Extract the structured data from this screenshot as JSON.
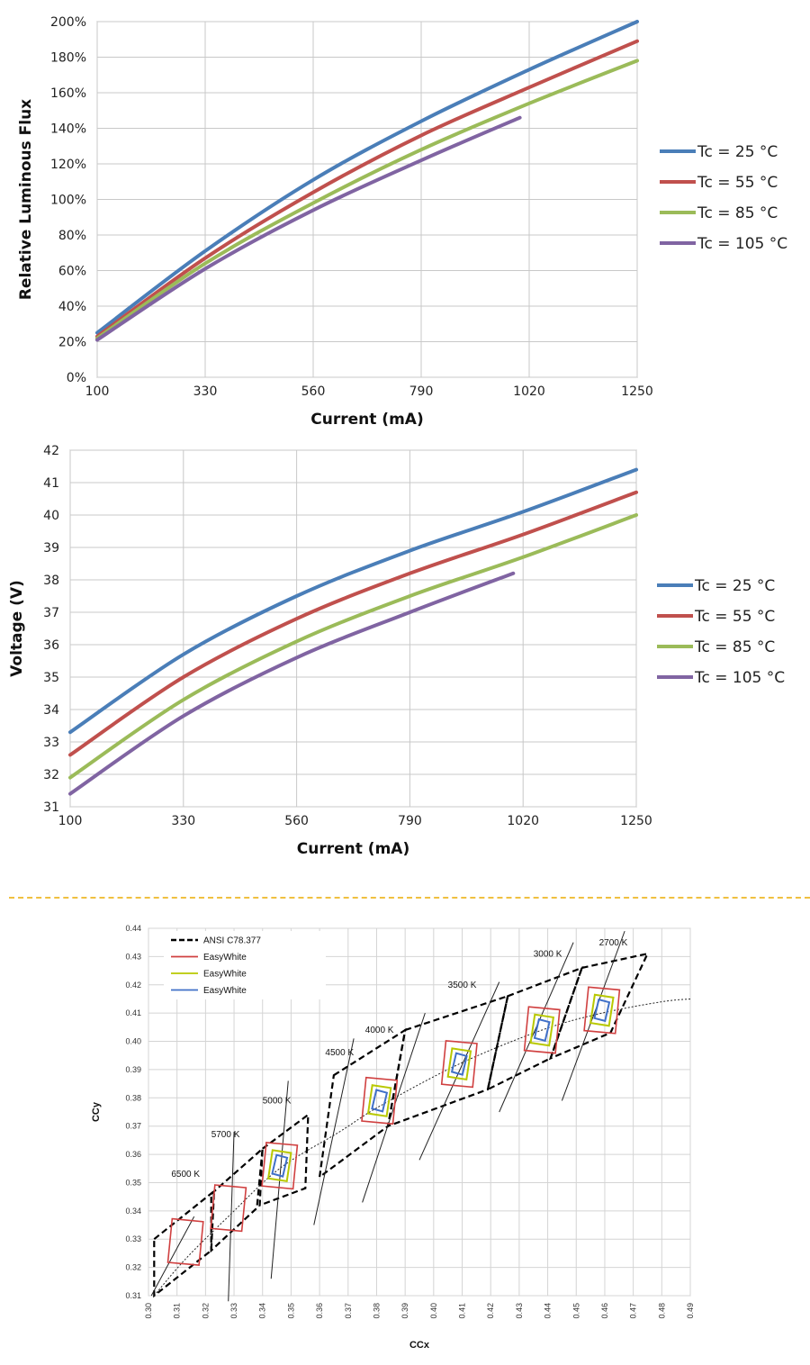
{
  "chart_data": [
    {
      "type": "line",
      "title": "",
      "xlabel": "Current (mA)",
      "ylabel": "Relative Luminous Flux",
      "x_ticks": [
        "100",
        "330",
        "560",
        "790",
        "1020",
        "1250"
      ],
      "y_ticks": [
        "0%",
        "20%",
        "40%",
        "60%",
        "80%",
        "100%",
        "120%",
        "140%",
        "160%",
        "180%",
        "200%"
      ],
      "xlim": [
        100,
        1250
      ],
      "ylim": [
        0,
        200
      ],
      "grid": true,
      "legend_position": "right",
      "series": [
        {
          "name": "Tc = 25 °C",
          "color": "#4a7eb8",
          "points": [
            [
              100,
              25
            ],
            [
              330,
              71
            ],
            [
              560,
              111
            ],
            [
              790,
              144
            ],
            [
              1020,
              173
            ],
            [
              1250,
              200
            ]
          ]
        },
        {
          "name": "Tc = 55 °C",
          "color": "#c0504d",
          "points": [
            [
              100,
              23
            ],
            [
              330,
              67
            ],
            [
              560,
              104
            ],
            [
              790,
              136
            ],
            [
              1020,
              163
            ],
            [
              1250,
              189
            ]
          ]
        },
        {
          "name": "Tc = 85 °C",
          "color": "#9bbb59",
          "points": [
            [
              100,
              22
            ],
            [
              330,
              64
            ],
            [
              560,
              98
            ],
            [
              790,
              128
            ],
            [
              1020,
              154
            ],
            [
              1250,
              178
            ]
          ]
        },
        {
          "name": "Tc = 105 °C",
          "color": "#8064a2",
          "points": [
            [
              100,
              21
            ],
            [
              330,
              61
            ],
            [
              560,
              94
            ],
            [
              790,
              122
            ],
            [
              1000,
              146
            ]
          ]
        }
      ]
    },
    {
      "type": "line",
      "title": "",
      "xlabel": "Current (mA)",
      "ylabel": "Voltage (V)",
      "x_ticks": [
        "100",
        "330",
        "560",
        "790",
        "1020",
        "1250"
      ],
      "y_ticks": [
        "31",
        "32",
        "33",
        "34",
        "35",
        "36",
        "37",
        "38",
        "39",
        "40",
        "41",
        "42"
      ],
      "xlim": [
        100,
        1250
      ],
      "ylim": [
        31,
        42
      ],
      "grid": true,
      "legend_position": "right",
      "series": [
        {
          "name": "Tc = 25 °C",
          "color": "#4a7eb8",
          "points": [
            [
              100,
              33.3
            ],
            [
              330,
              35.7
            ],
            [
              560,
              37.5
            ],
            [
              790,
              38.9
            ],
            [
              1020,
              40.1
            ],
            [
              1250,
              41.4
            ]
          ]
        },
        {
          "name": "Tc = 55 °C",
          "color": "#c0504d",
          "points": [
            [
              100,
              32.6
            ],
            [
              330,
              35.0
            ],
            [
              560,
              36.8
            ],
            [
              790,
              38.2
            ],
            [
              1020,
              39.4
            ],
            [
              1250,
              40.7
            ]
          ]
        },
        {
          "name": "Tc = 85 °C",
          "color": "#9bbb59",
          "points": [
            [
              100,
              31.9
            ],
            [
              330,
              34.3
            ],
            [
              560,
              36.1
            ],
            [
              790,
              37.5
            ],
            [
              1020,
              38.7
            ],
            [
              1250,
              40.0
            ]
          ]
        },
        {
          "name": "Tc = 105 °C",
          "color": "#8064a2",
          "points": [
            [
              100,
              31.4
            ],
            [
              330,
              33.8
            ],
            [
              560,
              35.6
            ],
            [
              790,
              37.0
            ],
            [
              1000,
              38.2
            ]
          ]
        }
      ]
    },
    {
      "type": "scatter",
      "title": "",
      "xlabel": "CCx",
      "ylabel": "CCy",
      "x_ticks": [
        "0.30",
        "0.31",
        "0.32",
        "0.33",
        "0.34",
        "0.35",
        "0.36",
        "0.37",
        "0.38",
        "0.39",
        "0.40",
        "0.41",
        "0.42",
        "0.43",
        "0.44",
        "0.45",
        "0.46",
        "0.47",
        "0.48",
        "0.49"
      ],
      "y_ticks": [
        "0.31",
        "0.32",
        "0.33",
        "0.34",
        "0.35",
        "0.36",
        "0.37",
        "0.38",
        "0.39",
        "0.40",
        "0.41",
        "0.42",
        "0.43",
        "0.44"
      ],
      "xlim": [
        0.3,
        0.49
      ],
      "ylim": [
        0.31,
        0.44
      ],
      "grid": true,
      "legend_position": "top-left",
      "legend": [
        {
          "name": "ANSI C78.377",
          "color": "#000000",
          "style": "dashed"
        },
        {
          "name": "EasyWhite",
          "color": "#d04040",
          "style": "solid"
        },
        {
          "name": "EasyWhite",
          "color": "#b8c800",
          "style": "solid"
        },
        {
          "name": "EasyWhite",
          "color": "#4070c8",
          "style": "solid"
        }
      ],
      "cct_labels": [
        {
          "text": "6500 K",
          "x": 0.313,
          "y": 0.352
        },
        {
          "text": "5700 K",
          "x": 0.327,
          "y": 0.366
        },
        {
          "text": "5000 K",
          "x": 0.345,
          "y": 0.378
        },
        {
          "text": "4500 K",
          "x": 0.367,
          "y": 0.395
        },
        {
          "text": "4000 K",
          "x": 0.381,
          "y": 0.403
        },
        {
          "text": "3500 K",
          "x": 0.41,
          "y": 0.419
        },
        {
          "text": "3000 K",
          "x": 0.44,
          "y": 0.43
        },
        {
          "text": "2700 K",
          "x": 0.463,
          "y": 0.434
        }
      ],
      "bins": [
        {
          "cct": "6500 K",
          "center": [
            0.313,
            0.329
          ],
          "easywhite": [
            "red"
          ]
        },
        {
          "cct": "5700 K",
          "center": [
            0.328,
            0.341
          ],
          "easywhite": [
            "red"
          ]
        },
        {
          "cct": "5000 K",
          "center": [
            0.346,
            0.356
          ],
          "easywhite": [
            "red",
            "yellow",
            "blue"
          ]
        },
        {
          "cct": "4000 K",
          "center": [
            0.381,
            0.379
          ],
          "easywhite": [
            "red",
            "yellow",
            "blue"
          ]
        },
        {
          "cct": "3500 K",
          "center": [
            0.409,
            0.392
          ],
          "easywhite": [
            "red",
            "yellow",
            "blue"
          ]
        },
        {
          "cct": "3000 K",
          "center": [
            0.438,
            0.404
          ],
          "easywhite": [
            "red",
            "yellow",
            "blue"
          ]
        },
        {
          "cct": "2700 K",
          "center": [
            0.459,
            0.411
          ],
          "easywhite": [
            "red",
            "yellow",
            "blue"
          ]
        }
      ]
    }
  ]
}
